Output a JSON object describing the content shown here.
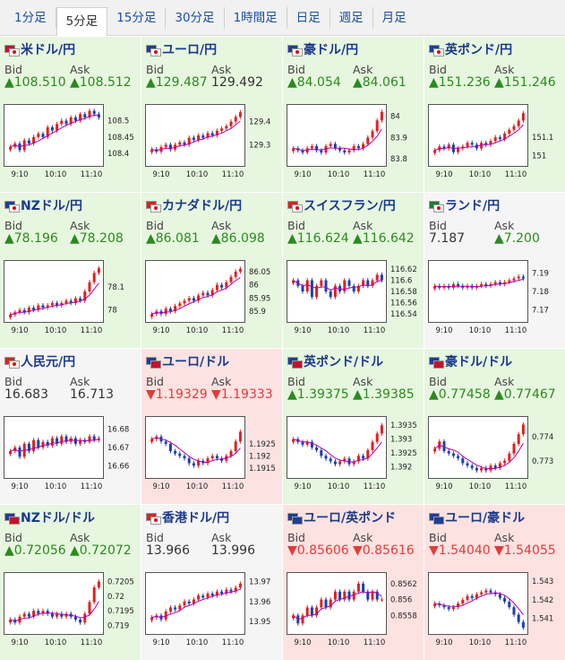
{
  "tabs": [
    "1分足",
    "5分足",
    "15分足",
    "30分足",
    "1時間足",
    "日足",
    "週足",
    "月足"
  ],
  "active_tab": 1,
  "labels": {
    "bid": "Bid",
    "ask": "Ask"
  },
  "x_ticks": [
    "9:10",
    "10:10",
    "11:10"
  ],
  "colors": {
    "up_bg": "#e7f6df",
    "down_bg": "#fde2e2",
    "candle_up": "#e02020",
    "candle_down": "#1a3fb0",
    "ma": "#b000b0"
  },
  "pairs": [
    {
      "name": "米ドル/円",
      "flags": [
        "us-flag-icon",
        "jp-flag-icon"
      ],
      "trend": "up",
      "bid": "▲108.510",
      "ask": "▲108.512",
      "y_ticks": [
        "108.5",
        "108.45",
        "108.4"
      ],
      "ylim": [
        108.37,
        108.54
      ],
      "chart_data": {
        "type": "candlestick",
        "values": [
          108.42,
          108.43,
          108.41,
          108.44,
          108.43,
          108.45,
          108.46,
          108.45,
          108.48,
          108.47,
          108.49,
          108.5,
          108.49,
          108.51,
          108.5,
          108.52,
          108.51,
          108.53,
          108.52,
          108.51
        ]
      }
    },
    {
      "name": "ユーロ/円",
      "flags": [
        "eu-flag-icon",
        "jp-flag-icon"
      ],
      "trend": "up",
      "bid": "▲129.487",
      "ask": "129.492",
      "y_ticks": [
        "129.4",
        "129.3"
      ],
      "ylim": [
        129.22,
        129.46
      ],
      "chart_data": {
        "type": "candlestick",
        "values": [
          129.28,
          129.27,
          129.29,
          129.3,
          129.28,
          129.3,
          129.31,
          129.3,
          129.33,
          129.32,
          129.34,
          129.33,
          129.35,
          129.34,
          129.36,
          129.37,
          129.38,
          129.4,
          129.42,
          129.44
        ]
      }
    },
    {
      "name": "豪ドル/円",
      "flags": [
        "au-flag-icon",
        "jp-flag-icon"
      ],
      "trend": "up",
      "bid": "▲84.054",
      "ask": "▲84.061",
      "y_ticks": [
        "84",
        "83.9",
        "83.8"
      ],
      "ylim": [
        83.78,
        84.04
      ],
      "chart_data": {
        "type": "candlestick",
        "values": [
          83.85,
          83.84,
          83.83,
          83.85,
          83.86,
          83.84,
          83.83,
          83.86,
          83.87,
          83.85,
          83.84,
          83.83,
          83.84,
          83.86,
          83.85,
          83.87,
          83.9,
          83.93,
          83.98,
          84.02
        ]
      }
    },
    {
      "name": "英ポンド/円",
      "flags": [
        "gb-flag-icon",
        "jp-flag-icon"
      ],
      "trend": "up",
      "bid": "▲151.236",
      "ask": "▲151.246",
      "y_ticks": [
        "151.1",
        "151"
      ],
      "ylim": [
        150.96,
        151.26
      ],
      "chart_data": {
        "type": "candlestick",
        "values": [
          151.03,
          151.05,
          151.04,
          151.06,
          151.02,
          151.04,
          151.05,
          151.07,
          151.06,
          151.04,
          151.07,
          151.06,
          151.08,
          151.1,
          151.09,
          151.12,
          151.14,
          151.16,
          151.19,
          151.23
        ]
      }
    },
    {
      "name": "NZドル/円",
      "flags": [
        "nz-flag-icon",
        "jp-flag-icon"
      ],
      "trend": "up",
      "bid": "▲78.196",
      "ask": "▲78.208",
      "y_ticks": [
        "78.1",
        "78"
      ],
      "ylim": [
        77.96,
        78.2
      ],
      "chart_data": {
        "type": "candlestick",
        "values": [
          77.98,
          77.99,
          78.0,
          77.99,
          78.01,
          78.0,
          78.02,
          78.01,
          78.02,
          78.03,
          78.02,
          78.03,
          78.04,
          78.03,
          78.05,
          78.04,
          78.08,
          78.12,
          78.16,
          78.18
        ]
      }
    },
    {
      "name": "カナダドル/円",
      "flags": [
        "ca-flag-icon",
        "jp-flag-icon"
      ],
      "trend": "up",
      "bid": "▲86.081",
      "ask": "▲86.098",
      "y_ticks": [
        "86.05",
        "86",
        "85.95",
        "85.9"
      ],
      "ylim": [
        85.87,
        86.08
      ],
      "chart_data": {
        "type": "candlestick",
        "values": [
          85.89,
          85.9,
          85.89,
          85.91,
          85.9,
          85.92,
          85.93,
          85.94,
          85.95,
          85.94,
          85.96,
          85.97,
          85.96,
          85.98,
          86.0,
          85.99,
          86.01,
          86.03,
          86.05,
          86.06
        ]
      }
    },
    {
      "name": "スイスフラン/円",
      "flags": [
        "ch-flag-icon",
        "jp-flag-icon"
      ],
      "trend": "up",
      "bid": "▲116.624",
      "ask": "▲116.642",
      "y_ticks": [
        "116.62",
        "116.6",
        "116.58",
        "116.56",
        "116.54"
      ],
      "ylim": [
        116.53,
        116.63
      ],
      "chart_data": {
        "type": "candlestick",
        "values": [
          116.6,
          116.59,
          116.58,
          116.6,
          116.57,
          116.59,
          116.6,
          116.58,
          116.57,
          116.59,
          116.58,
          116.6,
          116.59,
          116.58,
          116.59,
          116.6,
          116.59,
          116.6,
          116.61,
          116.6
        ]
      }
    },
    {
      "name": "ランド/円",
      "flags": [
        "za-flag-icon",
        "jp-flag-icon"
      ],
      "trend": "none",
      "bid": "7.187",
      "ask": "▲7.200",
      "y_ticks": [
        "7.19",
        "7.18",
        "7.17"
      ],
      "ylim": [
        7.165,
        7.195
      ],
      "chart_data": {
        "type": "candlestick",
        "values": [
          7.183,
          7.182,
          7.183,
          7.182,
          7.184,
          7.183,
          7.182,
          7.183,
          7.182,
          7.183,
          7.184,
          7.183,
          7.184,
          7.185,
          7.184,
          7.185,
          7.186,
          7.187,
          7.188,
          7.187
        ]
      }
    },
    {
      "name": "人民元/円",
      "flags": [
        "cn-flag-icon",
        "jp-flag-icon"
      ],
      "trend": "none",
      "bid": "16.683",
      "ask": "16.713",
      "y_ticks": [
        "16.68",
        "16.67",
        "16.66"
      ],
      "ylim": [
        16.655,
        16.685
      ],
      "chart_data": {
        "type": "candlestick",
        "values": [
          16.668,
          16.67,
          16.665,
          16.672,
          16.668,
          16.674,
          16.67,
          16.673,
          16.671,
          16.675,
          16.672,
          16.676,
          16.673,
          16.675,
          16.672,
          16.674,
          16.673,
          16.676,
          16.674,
          16.675
        ]
      }
    },
    {
      "name": "ユーロ/ドル",
      "flags": [
        "eu-flag-icon",
        "us-flag-icon"
      ],
      "trend": "down",
      "bid": "▼1.19329",
      "ask": "▼1.19333",
      "y_ticks": [
        "1.1925",
        "1.192",
        "1.1915"
      ],
      "ylim": [
        1.1912,
        1.1935
      ],
      "chart_data": {
        "type": "candlestick",
        "values": [
          1.1927,
          1.1928,
          1.1926,
          1.1925,
          1.1922,
          1.1921,
          1.192,
          1.1919,
          1.1917,
          1.1916,
          1.1918,
          1.1917,
          1.1919,
          1.192,
          1.1919,
          1.1918,
          1.192,
          1.1922,
          1.1926,
          1.193
        ]
      }
    },
    {
      "name": "英ポンド/ドル",
      "flags": [
        "gb-flag-icon",
        "us-flag-icon"
      ],
      "trend": "up",
      "bid": "▲1.39375",
      "ask": "▲1.39385",
      "y_ticks": [
        "1.3935",
        "1.393",
        "1.3925",
        "1.392"
      ],
      "ylim": [
        1.3917,
        1.3937
      ],
      "chart_data": {
        "type": "candlestick",
        "values": [
          1.393,
          1.3929,
          1.3928,
          1.3929,
          1.3927,
          1.3926,
          1.3924,
          1.3923,
          1.3922,
          1.3921,
          1.3922,
          1.3923,
          1.3921,
          1.3922,
          1.3924,
          1.3923,
          1.3926,
          1.3929,
          1.3932,
          1.3935
        ]
      }
    },
    {
      "name": "豪ドル/ドル",
      "flags": [
        "au-flag-icon",
        "us-flag-icon"
      ],
      "trend": "up",
      "bid": "▲0.77458",
      "ask": "▲0.77467",
      "y_ticks": [
        "0.774",
        "0.773"
      ],
      "ylim": [
        0.7724,
        0.7747
      ],
      "chart_data": {
        "type": "candlestick",
        "values": [
          0.7735,
          0.7738,
          0.7734,
          0.7733,
          0.7732,
          0.7731,
          0.7729,
          0.7728,
          0.7727,
          0.7726,
          0.7727,
          0.7726,
          0.7728,
          0.7727,
          0.7729,
          0.773,
          0.7733,
          0.7737,
          0.7741,
          0.7745
        ]
      }
    },
    {
      "name": "NZドル/ドル",
      "flags": [
        "nz-flag-icon",
        "us-flag-icon"
      ],
      "trend": "up",
      "bid": "▲0.72056",
      "ask": "▲0.72072",
      "y_ticks": [
        "0.7205",
        "0.72",
        "0.7195",
        "0.719"
      ],
      "ylim": [
        0.7188,
        0.7207
      ],
      "chart_data": {
        "type": "candlestick",
        "values": [
          0.7192,
          0.7191,
          0.7193,
          0.7194,
          0.7193,
          0.7195,
          0.7194,
          0.7195,
          0.7194,
          0.7193,
          0.7194,
          0.7193,
          0.7194,
          0.7193,
          0.7192,
          0.7191,
          0.7194,
          0.7198,
          0.7203,
          0.7205
        ]
      }
    },
    {
      "name": "香港ドル/円",
      "flags": [
        "hk-flag-icon",
        "jp-flag-icon"
      ],
      "trend": "none",
      "bid": "13.966",
      "ask": "13.996",
      "y_ticks": [
        "13.97",
        "13.96",
        "13.95"
      ],
      "ylim": [
        13.945,
        13.973
      ],
      "chart_data": {
        "type": "candlestick",
        "values": [
          13.952,
          13.953,
          13.951,
          13.955,
          13.957,
          13.956,
          13.958,
          13.96,
          13.959,
          13.961,
          13.963,
          13.962,
          13.964,
          13.963,
          13.965,
          13.964,
          13.966,
          13.965,
          13.967,
          13.969
        ]
      }
    },
    {
      "name": "ユーロ/英ポンド",
      "flags": [
        "eu-flag-icon",
        "gb-flag-icon"
      ],
      "trend": "down",
      "bid": "▼0.85606",
      "ask": "▼0.85616",
      "y_ticks": [
        "0.8562",
        "0.856",
        "0.8558"
      ],
      "ylim": [
        0.8556,
        0.8563
      ],
      "chart_data": {
        "type": "candlestick",
        "values": [
          0.8558,
          0.8557,
          0.8558,
          0.8559,
          0.8558,
          0.8559,
          0.856,
          0.8559,
          0.856,
          0.8561,
          0.856,
          0.8561,
          0.856,
          0.8561,
          0.8562,
          0.8561,
          0.856,
          0.8561,
          0.856,
          0.856
        ]
      }
    },
    {
      "name": "ユーロ/豪ドル",
      "flags": [
        "eu-flag-icon",
        "au-flag-icon"
      ],
      "trend": "down",
      "bid": "▼1.54040",
      "ask": "▼1.54055",
      "y_ticks": [
        "1.543",
        "1.542",
        "1.541"
      ],
      "ylim": [
        1.5403,
        1.5433
      ],
      "chart_data": {
        "type": "candlestick",
        "values": [
          1.5418,
          1.5417,
          1.5416,
          1.5415,
          1.5416,
          1.5418,
          1.542,
          1.5422,
          1.5421,
          1.5423,
          1.5424,
          1.5425,
          1.5424,
          1.5423,
          1.5421,
          1.5419,
          1.5416,
          1.5412,
          1.5408,
          1.5405
        ]
      }
    }
  ]
}
